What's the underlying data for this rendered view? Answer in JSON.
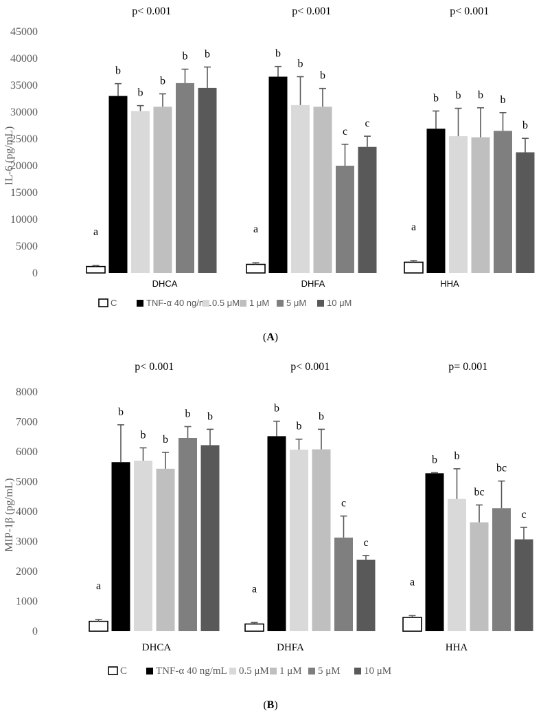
{
  "colors": {
    "C": "#ffffff",
    "TNF": "#000000",
    "s05": "#d9d9d9",
    "s1": "#bfbfbf",
    "s5": "#7f7f7f",
    "s10": "#595959",
    "axis": "#595959",
    "err": "#595959"
  },
  "legend_labels": [
    "C",
    "TNF-α 40 ng/mL",
    "0.5 μM",
    "1 μM",
    "5 μM",
    "10 μM"
  ],
  "chart_data": [
    {
      "type": "bar",
      "panel_label": "A",
      "ylabel": "IL-6 (pg/mL)",
      "ylim": [
        0,
        45000
      ],
      "yticks": [
        0,
        5000,
        10000,
        15000,
        20000,
        25000,
        30000,
        35000,
        40000,
        45000
      ],
      "groups": [
        {
          "name": "DHCA",
          "pvalue": "p< 0.001",
          "values": [
            1200,
            33000,
            30200,
            31000,
            35400,
            34500
          ],
          "errors": [
            200,
            2300,
            1000,
            2400,
            2600,
            3900
          ],
          "letters": [
            "a",
            "b",
            "b",
            "b",
            "b",
            "b"
          ]
        },
        {
          "name": "DHFA",
          "pvalue": "p< 0.001",
          "values": [
            1600,
            36600,
            31300,
            31000,
            20000,
            23500
          ],
          "errors": [
            300,
            1900,
            5300,
            3400,
            4000,
            2000
          ],
          "letters": [
            "a",
            "b",
            "b",
            "b",
            "c",
            "c"
          ]
        },
        {
          "name": "HHA",
          "pvalue": "p< 0.001",
          "values": [
            2000,
            26900,
            25500,
            25300,
            26500,
            22500
          ],
          "errors": [
            300,
            3300,
            5200,
            5500,
            3400,
            2600
          ],
          "letters": [
            "a",
            "b",
            "b",
            "b",
            "b",
            "b"
          ]
        }
      ]
    },
    {
      "type": "bar",
      "panel_label": "B",
      "ylabel": "MIP-1β (pg/mL)",
      "ylim": [
        0,
        8000
      ],
      "yticks": [
        0,
        1000,
        2000,
        3000,
        4000,
        5000,
        6000,
        7000,
        8000
      ],
      "groups": [
        {
          "name": "DHCA",
          "pvalue": "p< 0.001",
          "values": [
            330,
            5650,
            5700,
            5430,
            6460,
            6220
          ],
          "errors": [
            60,
            1250,
            430,
            550,
            380,
            530
          ],
          "letters": [
            "a",
            "b",
            "b",
            "b",
            "b",
            "b"
          ]
        },
        {
          "name": "DHFA",
          "pvalue": "p< 0.001",
          "values": [
            240,
            6520,
            6070,
            6080,
            3130,
            2390
          ],
          "errors": [
            50,
            500,
            350,
            670,
            720,
            140
          ],
          "letters": [
            "a",
            "b",
            "b",
            "b",
            "c",
            "c"
          ]
        },
        {
          "name": "HHA",
          "pvalue": "p= 0.001",
          "values": [
            460,
            5280,
            4420,
            3640,
            4110,
            3070
          ],
          "errors": [
            60,
            20,
            1010,
            580,
            910,
            400
          ],
          "letters": [
            "a",
            "b",
            "b",
            "bc",
            "bc",
            "c"
          ]
        }
      ]
    }
  ]
}
